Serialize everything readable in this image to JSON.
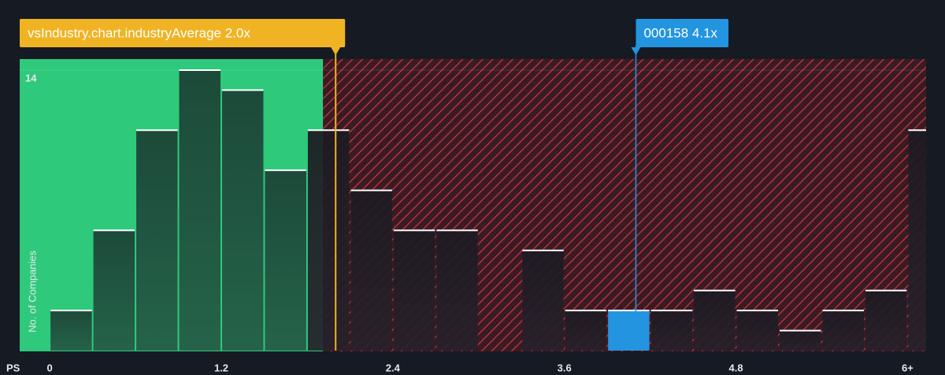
{
  "chart_data": {
    "type": "histogram",
    "x_label": "PS",
    "y_label": "No. of Companies",
    "bins": [
      0,
      0.3,
      0.6,
      0.9,
      1.2,
      1.5,
      1.8,
      2.1,
      2.4,
      2.7,
      3,
      3.3,
      3.6,
      3.9,
      4.2,
      4.5,
      4.8,
      5.1,
      5.4,
      5.7,
      6,
      6.3
    ],
    "values": [
      2,
      6,
      11,
      14,
      13,
      9,
      11,
      8,
      6,
      6,
      0,
      5,
      2,
      2,
      2,
      3,
      2,
      1,
      2,
      3,
      11
    ],
    "xlim": [
      -0.21,
      6.13
    ],
    "ylim": [
      0,
      14.55
    ],
    "xticks": [
      0,
      1.2,
      2.4,
      3.6,
      4.8,
      {
        "value": 6,
        "label": "6+"
      }
    ],
    "yticks": [
      14
    ],
    "grid": true,
    "annotations": [
      {
        "label": "vsIndustry.chart.industryAverage 2.0x",
        "value": 2.0,
        "color": "#f0b323"
      },
      {
        "label": "000158 4.1x",
        "value": 4.1,
        "color": "#2394e0"
      }
    ]
  }
}
